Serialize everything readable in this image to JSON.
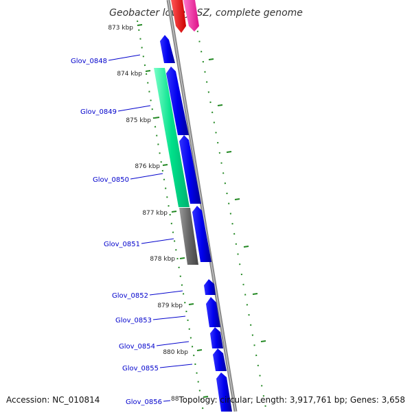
{
  "title": "Geobacter lovleyi SZ, complete genome",
  "footer": {
    "accession": "Accession: NC_010814",
    "topology": "Topology: circular; Length: 3,917,761 bp; Genes: 3,658"
  },
  "kbp_labels": [
    "873 kbp",
    "874 kbp",
    "875 kbp",
    "876 kbp",
    "877 kbp",
    "878 kbp",
    "879 kbp",
    "880 kbp",
    "88"
  ],
  "gene_labels": [
    "Glov_0848",
    "Glov_0849",
    "Glov_0850",
    "Glov_0851",
    "Glov_0852",
    "Glov_0853",
    "Glov_0854",
    "Glov_0855",
    "Glov_0856"
  ],
  "colors": {
    "cds": "#0000ee",
    "rrna": "#00e08a",
    "trna": "#666666",
    "red": "#ff0000",
    "pink": "#ff33aa",
    "backbone": "#888888",
    "tick": "#228822",
    "label_line": "#0000cc"
  }
}
